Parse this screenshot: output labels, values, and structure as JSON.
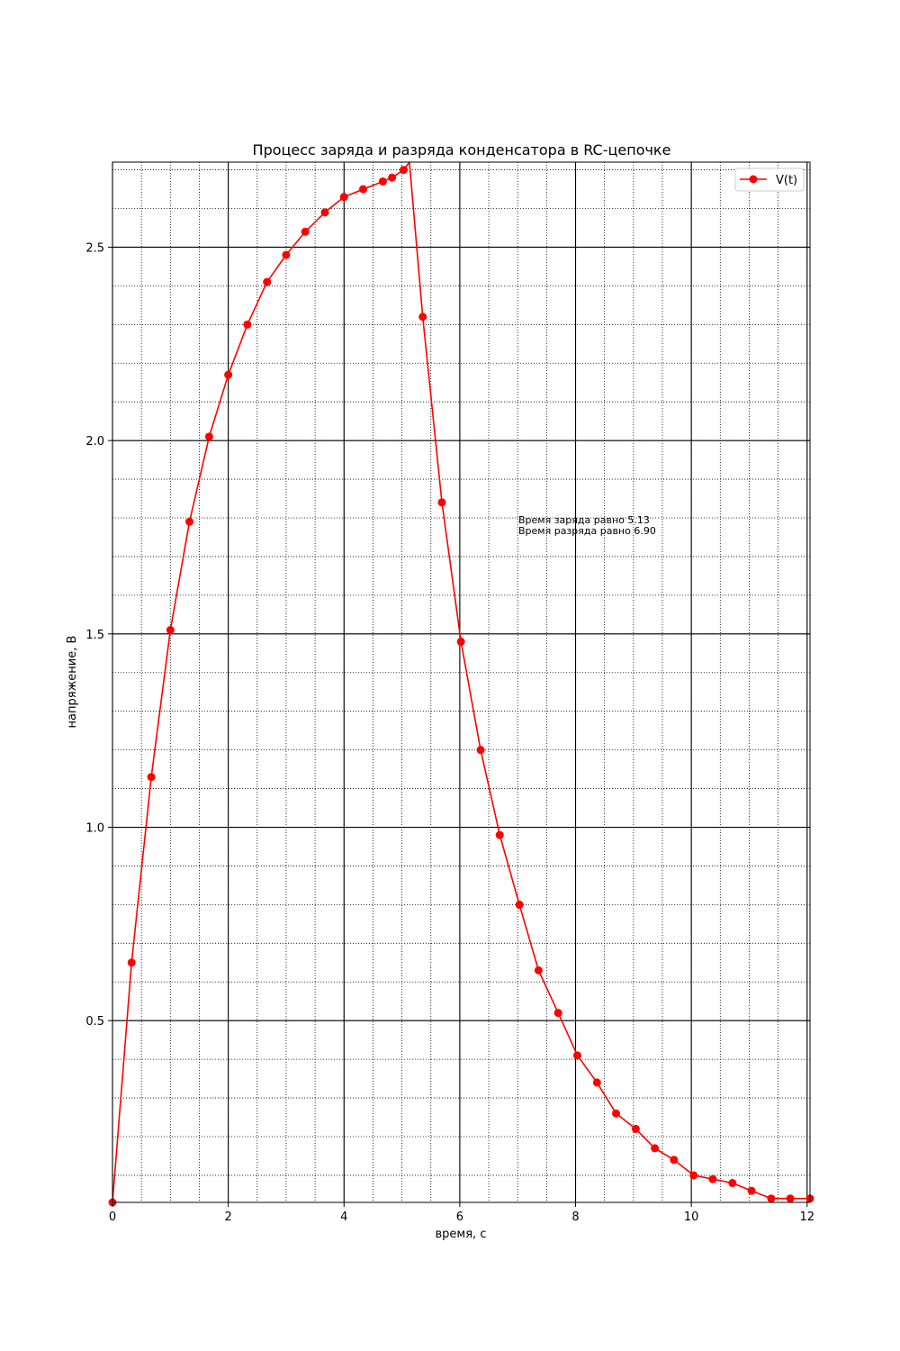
{
  "chart_data": {
    "type": "line",
    "title": "Процесс заряда и разряда конденсатора в RC-цепочке",
    "xlabel": "время, с",
    "ylabel": "напряжение, В",
    "xlim": [
      0,
      12.05
    ],
    "ylim": [
      0.03,
      2.72
    ],
    "x_ticks": [
      0,
      2,
      4,
      6,
      8,
      10,
      12
    ],
    "x_tick_labels": [
      "0",
      "2",
      "4",
      "6",
      "8",
      "10",
      "12"
    ],
    "y_ticks": [
      0.5,
      1.0,
      1.5,
      2.0,
      2.5
    ],
    "y_tick_labels": [
      "0.5",
      "1.0",
      "1.5",
      "2.0",
      "2.5"
    ],
    "x_minor_step": 0.5,
    "y_minor_step": 0.1,
    "grid": true,
    "legend_position": "top-right",
    "annotations": [
      "Время заряда равно  5.13",
      "Время разряда равно  6.90"
    ],
    "series": [
      {
        "name": "V(t)",
        "color": "#ff0000",
        "marker": "circle",
        "x": [
          0.0,
          0.33,
          0.67,
          1.0,
          1.33,
          1.67,
          2.0,
          2.33,
          2.67,
          3.0,
          3.33,
          3.67,
          4.0,
          4.33,
          4.67,
          4.83,
          5.03,
          5.13,
          5.36,
          5.69,
          6.02,
          6.36,
          6.69,
          7.03,
          7.36,
          7.7,
          8.03,
          8.37,
          8.7,
          9.04,
          9.37,
          9.7,
          10.04,
          10.37,
          10.71,
          11.04,
          11.38,
          11.71,
          12.05
        ],
        "y": [
          0.03,
          0.65,
          1.13,
          1.51,
          1.79,
          2.01,
          2.17,
          2.3,
          2.41,
          2.48,
          2.54,
          2.59,
          2.63,
          2.65,
          2.67,
          2.68,
          2.7,
          2.72,
          2.32,
          1.84,
          1.48,
          1.2,
          0.98,
          0.8,
          0.63,
          0.52,
          0.41,
          0.34,
          0.26,
          0.22,
          0.17,
          0.14,
          0.1,
          0.09,
          0.08,
          0.06,
          0.04,
          0.04,
          0.04
        ]
      }
    ]
  }
}
